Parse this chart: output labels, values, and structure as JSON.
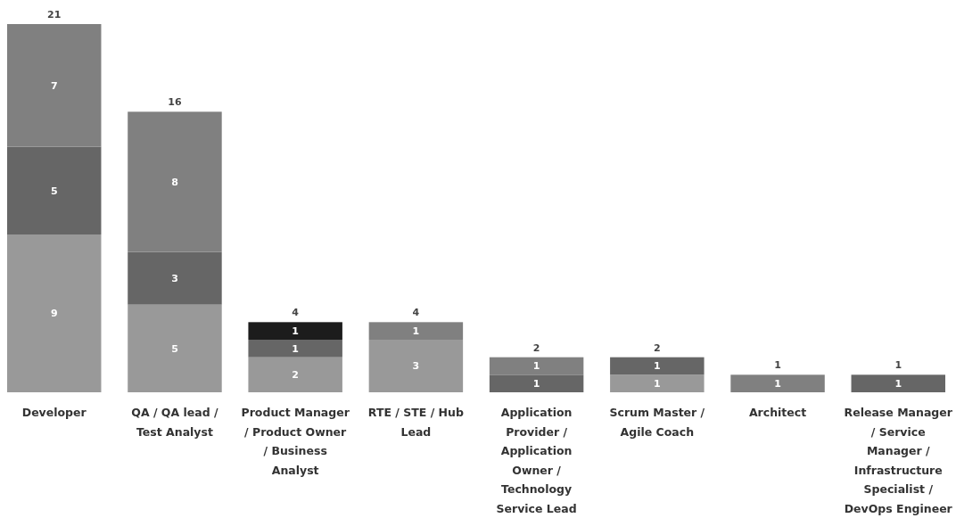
{
  "chart_data": {
    "type": "bar",
    "stacked": true,
    "data_labels": true,
    "categories": [
      "Developer",
      "QA / QA lead / Test Analyst",
      "Product Manager / Product Owner / Business Analyst",
      "RTE / STE / Hub Lead",
      "Application Provider / Application Owner / Technology Service Lead",
      "Scrum Master / Agile Coach",
      "Architect",
      "Release Manager / Service Manager / Infrastructure Specialist / DevOps Engineer"
    ],
    "series": [
      {
        "color": "#999999",
        "values": [
          9,
          5,
          2,
          3,
          null,
          1,
          null,
          null
        ]
      },
      {
        "color": "#666666",
        "values": [
          5,
          3,
          1,
          null,
          1,
          1,
          null,
          1
        ]
      },
      {
        "color": "#808080",
        "values": [
          7,
          8,
          null,
          1,
          1,
          null,
          1,
          null
        ]
      },
      {
        "color": "#1c1c1c",
        "values": [
          null,
          null,
          1,
          null,
          null,
          null,
          null,
          null
        ]
      }
    ],
    "totals": [
      "21",
      "16",
      "4",
      "4",
      "2",
      "2",
      "1",
      "1"
    ]
  }
}
